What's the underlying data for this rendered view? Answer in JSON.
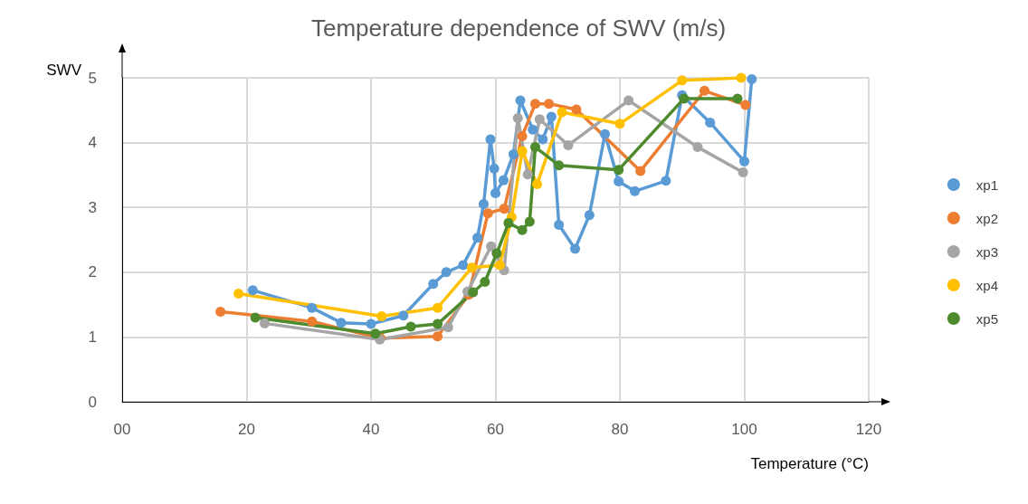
{
  "chart_data": {
    "type": "line",
    "title": "Temperature dependence of SWV (m/s)",
    "xlabel": "Temperature (°C)",
    "ylabel": "SWV",
    "xlim": [
      0,
      120
    ],
    "xticks": [
      {
        "value": 0,
        "label": "00"
      },
      20,
      40,
      60,
      80,
      100,
      120
    ],
    "ylim": [
      0,
      5
    ],
    "yticks": [
      0,
      1,
      2,
      3,
      4,
      5
    ],
    "grid": true,
    "legend": "right",
    "marker": "circle",
    "series": [
      {
        "name": "xp1",
        "color": "#5b9bd5",
        "x": [
          21.0,
          30.5,
          35.2,
          40,
          45.2,
          50,
          52.1,
          54.8,
          57.1,
          58.1,
          59.2,
          59.8,
          60,
          61.3,
          62.9,
          64.0,
          66,
          67.6,
          69,
          70.2,
          72.8,
          75.1,
          77.6,
          79.8,
          82.4,
          87.4,
          90,
          94.5,
          100,
          101.2
        ],
        "values": [
          1.72,
          1.45,
          1.22,
          1.2,
          1.33,
          1.82,
          2.0,
          2.11,
          2.53,
          3.05,
          4.05,
          3.6,
          3.22,
          3.42,
          3.82,
          4.65,
          4.2,
          4.05,
          4.4,
          2.73,
          2.36,
          2.88,
          4.13,
          3.4,
          3.25,
          3.41,
          4.73,
          4.31,
          3.71,
          4.98
        ]
      },
      {
        "name": "xp2",
        "color": "#ed7d31",
        "x": [
          15.8,
          30.5,
          41.5,
          50.7,
          55.7,
          58.8,
          61.4,
          64.3,
          66.4,
          68.6,
          73,
          83.3,
          93.6,
          100.2
        ],
        "values": [
          1.39,
          1.24,
          0.98,
          1.01,
          1.65,
          2.91,
          2.98,
          4.1,
          4.6,
          4.6,
          4.51,
          3.56,
          4.8,
          4.58
        ]
      },
      {
        "name": "xp3",
        "color": "#a5a5a5",
        "x": [
          22.9,
          41.4,
          52.4,
          55.5,
          59.3,
          61.4,
          63.6,
          65.2,
          67.1,
          71.7,
          81.4,
          92.5,
          99.8
        ],
        "values": [
          1.21,
          0.96,
          1.15,
          1.7,
          2.4,
          2.03,
          4.38,
          3.51,
          4.36,
          3.96,
          4.65,
          3.93,
          3.54
        ]
      },
      {
        "name": "xp4",
        "color": "#ffc000",
        "x": [
          18.7,
          41.7,
          50.7,
          56.2,
          60.7,
          62.6,
          64.3,
          66.7,
          70.7,
          80,
          90,
          99.5
        ],
        "values": [
          1.67,
          1.32,
          1.45,
          2.07,
          2.11,
          2.85,
          3.87,
          3.36,
          4.47,
          4.29,
          4.96,
          5.0
        ]
      },
      {
        "name": "xp5",
        "color": "#4e8a2e",
        "x": [
          21.4,
          40.7,
          46.4,
          50.7,
          56.4,
          58.3,
          60.2,
          62.1,
          64.3,
          65.5,
          66.4,
          70.2,
          79.8,
          90.3,
          98.9
        ],
        "values": [
          1.3,
          1.05,
          1.16,
          1.2,
          1.69,
          1.85,
          2.29,
          2.76,
          2.65,
          2.78,
          3.93,
          3.65,
          3.58,
          4.68,
          4.68
        ]
      }
    ]
  }
}
